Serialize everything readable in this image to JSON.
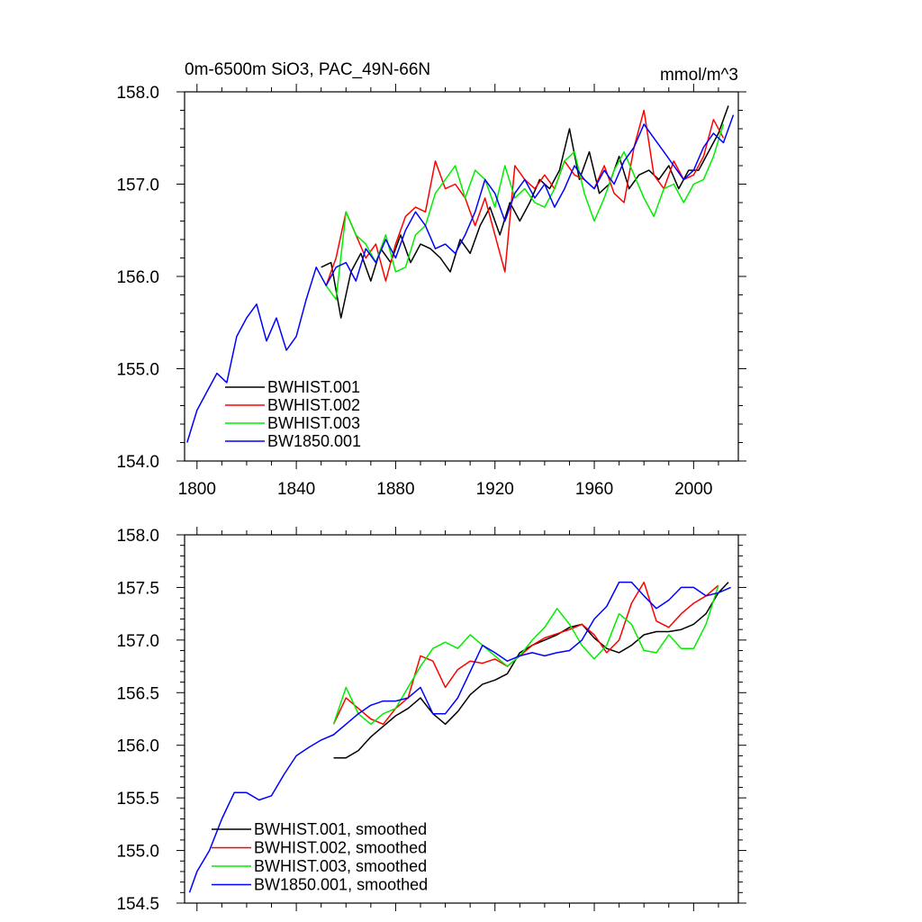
{
  "chart_data": [
    {
      "type": "line",
      "title_left": "0m-6500m SiO3, PAC_49N-66N",
      "title_right": "mmol/m^3",
      "xlim": [
        1795,
        2018
      ],
      "ylim": [
        154.0,
        158.0
      ],
      "xticks": [
        1800,
        1840,
        1880,
        1920,
        1960,
        2000
      ],
      "yticks": [
        154.0,
        155.0,
        156.0,
        157.0,
        158.0
      ],
      "yticks_format": 1,
      "x_minor_step": 10,
      "y_minor_step": 0.2,
      "show_x_tick_labels": true,
      "legend_position": "bottom-left",
      "series": [
        {
          "name": "BWHIST.001",
          "color": "#000000",
          "x": [
            1850,
            1854,
            1858,
            1862,
            1866,
            1870,
            1874,
            1878,
            1882,
            1886,
            1890,
            1894,
            1898,
            1902,
            1906,
            1910,
            1914,
            1918,
            1922,
            1926,
            1930,
            1934,
            1938,
            1942,
            1946,
            1950,
            1954,
            1958,
            1962,
            1966,
            1970,
            1974,
            1978,
            1982,
            1986,
            1990,
            1994,
            1998,
            2002,
            2006,
            2010,
            2014
          ],
          "y": [
            156.1,
            156.15,
            155.55,
            156.05,
            156.25,
            155.95,
            156.3,
            156.15,
            156.45,
            156.15,
            156.35,
            156.3,
            156.2,
            156.05,
            156.4,
            156.25,
            156.55,
            156.75,
            156.45,
            156.8,
            156.6,
            156.8,
            157.05,
            156.95,
            157.15,
            157.6,
            157.05,
            157.35,
            156.9,
            157.0,
            157.3,
            156.95,
            157.1,
            157.15,
            157.05,
            157.2,
            156.95,
            157.15,
            157.15,
            157.35,
            157.55,
            157.85
          ]
        },
        {
          "name": "BWHIST.002",
          "color": "#ff0000",
          "x": [
            1852,
            1856,
            1860,
            1864,
            1868,
            1872,
            1876,
            1880,
            1884,
            1888,
            1892,
            1896,
            1900,
            1904,
            1908,
            1912,
            1916,
            1920,
            1924,
            1928,
            1932,
            1936,
            1940,
            1944,
            1948,
            1952,
            1956,
            1960,
            1964,
            1968,
            1972,
            1976,
            1980,
            1984,
            1988,
            1992,
            1996,
            2000,
            2004,
            2008,
            2012
          ],
          "y": [
            155.9,
            156.2,
            156.7,
            156.45,
            156.2,
            156.35,
            155.95,
            156.35,
            156.65,
            156.75,
            156.7,
            157.25,
            156.95,
            157.0,
            156.85,
            156.55,
            156.85,
            156.45,
            156.05,
            157.2,
            157.05,
            156.95,
            157.1,
            156.95,
            157.25,
            157.1,
            157.05,
            156.95,
            157.2,
            156.9,
            156.8,
            157.4,
            157.8,
            157.1,
            156.95,
            157.25,
            157.05,
            157.1,
            157.3,
            157.7,
            157.5
          ]
        },
        {
          "name": "BWHIST.003",
          "color": "#00ee00",
          "x": [
            1852,
            1856,
            1860,
            1864,
            1868,
            1872,
            1876,
            1880,
            1884,
            1888,
            1892,
            1896,
            1900,
            1904,
            1908,
            1912,
            1916,
            1920,
            1924,
            1928,
            1932,
            1936,
            1940,
            1944,
            1948,
            1952,
            1956,
            1960,
            1964,
            1968,
            1972,
            1976,
            1980,
            1984,
            1988,
            1992,
            1996,
            2000,
            2004,
            2008,
            2012
          ],
          "y": [
            155.9,
            155.75,
            156.7,
            156.45,
            156.35,
            156.15,
            156.45,
            156.05,
            156.1,
            156.45,
            156.55,
            156.9,
            157.05,
            157.2,
            156.85,
            157.15,
            157.05,
            156.75,
            157.2,
            156.85,
            156.95,
            156.8,
            156.75,
            156.95,
            157.25,
            157.35,
            156.9,
            156.6,
            156.85,
            157.15,
            157.35,
            157.1,
            156.85,
            156.65,
            156.95,
            157.0,
            156.8,
            157.0,
            157.05,
            157.3,
            157.65
          ]
        },
        {
          "name": "BW1850.001",
          "color": "#0000ff",
          "x": [
            1796,
            1800,
            1804,
            1808,
            1812,
            1816,
            1820,
            1824,
            1828,
            1832,
            1836,
            1840,
            1844,
            1848,
            1852,
            1856,
            1860,
            1864,
            1868,
            1872,
            1876,
            1880,
            1884,
            1888,
            1892,
            1896,
            1900,
            1904,
            1908,
            1912,
            1916,
            1920,
            1924,
            1928,
            1932,
            1936,
            1940,
            1944,
            1948,
            1952,
            1956,
            1960,
            1964,
            1968,
            1972,
            1976,
            1980,
            1984,
            1988,
            1992,
            1996,
            2000,
            2004,
            2008,
            2012,
            2016
          ],
          "y": [
            154.2,
            154.55,
            154.75,
            154.95,
            154.85,
            155.35,
            155.55,
            155.7,
            155.3,
            155.55,
            155.2,
            155.35,
            155.75,
            156.1,
            155.9,
            156.1,
            156.15,
            155.95,
            156.3,
            156.15,
            156.4,
            156.2,
            156.5,
            156.7,
            156.55,
            156.3,
            156.35,
            156.25,
            156.45,
            156.7,
            157.05,
            156.9,
            156.6,
            156.9,
            157.05,
            156.85,
            157.0,
            156.75,
            156.95,
            157.2,
            157.05,
            156.95,
            157.15,
            157.0,
            157.25,
            157.4,
            157.65,
            157.5,
            157.35,
            157.2,
            157.05,
            157.15,
            157.4,
            157.55,
            157.45,
            157.75
          ]
        }
      ]
    },
    {
      "type": "line",
      "xlim": [
        1795,
        2018
      ],
      "ylim": [
        154.5,
        158.0
      ],
      "xticks": [
        1800,
        1840,
        1880,
        1920,
        1960,
        2000
      ],
      "yticks": [
        154.5,
        155.0,
        155.5,
        156.0,
        156.5,
        157.0,
        157.5,
        158.0
      ],
      "yticks_format": 1,
      "x_minor_step": 10,
      "y_minor_step": 0.1,
      "show_x_tick_labels": false,
      "legend_position": "bottom-left",
      "series": [
        {
          "name": "BWHIST.001, smoothed",
          "color": "#000000",
          "x": [
            1855,
            1860,
            1865,
            1870,
            1875,
            1880,
            1885,
            1890,
            1895,
            1900,
            1905,
            1910,
            1915,
            1920,
            1925,
            1930,
            1935,
            1940,
            1945,
            1950,
            1955,
            1960,
            1965,
            1970,
            1975,
            1980,
            1985,
            1990,
            1995,
            2000,
            2005,
            2010,
            2014
          ],
          "y": [
            155.88,
            155.88,
            155.95,
            156.08,
            156.18,
            156.28,
            156.35,
            156.45,
            156.3,
            156.2,
            156.32,
            156.48,
            156.58,
            156.62,
            156.68,
            156.88,
            156.95,
            157.0,
            157.05,
            157.12,
            157.15,
            157.02,
            156.92,
            156.88,
            156.95,
            157.05,
            157.08,
            157.08,
            157.1,
            157.15,
            157.25,
            157.45,
            157.55
          ]
        },
        {
          "name": "BWHIST.002, smoothed",
          "color": "#ff0000",
          "x": [
            1855,
            1860,
            1865,
            1870,
            1875,
            1880,
            1885,
            1890,
            1895,
            1900,
            1905,
            1910,
            1915,
            1920,
            1925,
            1930,
            1935,
            1940,
            1945,
            1950,
            1955,
            1960,
            1965,
            1970,
            1975,
            1980,
            1985,
            1990,
            1995,
            2000,
            2005,
            2010
          ],
          "y": [
            156.2,
            156.45,
            156.35,
            156.25,
            156.2,
            156.35,
            156.45,
            156.85,
            156.8,
            156.55,
            156.72,
            156.8,
            156.78,
            156.82,
            156.75,
            156.85,
            156.95,
            157.02,
            157.06,
            157.1,
            157.15,
            157.05,
            156.88,
            157.0,
            157.35,
            157.55,
            157.18,
            157.12,
            157.25,
            157.35,
            157.42,
            157.52
          ]
        },
        {
          "name": "BWHIST.003, smoothed",
          "color": "#00ee00",
          "x": [
            1855,
            1860,
            1865,
            1870,
            1875,
            1880,
            1885,
            1890,
            1895,
            1900,
            1905,
            1910,
            1915,
            1920,
            1925,
            1930,
            1935,
            1940,
            1945,
            1950,
            1955,
            1960,
            1965,
            1970,
            1975,
            1980,
            1985,
            1990,
            1995,
            2000,
            2005,
            2010
          ],
          "y": [
            156.2,
            156.55,
            156.3,
            156.2,
            156.3,
            156.35,
            156.55,
            156.75,
            156.92,
            156.98,
            156.92,
            157.05,
            156.95,
            156.85,
            156.75,
            156.85,
            157.0,
            157.12,
            157.3,
            157.15,
            156.95,
            156.82,
            156.95,
            157.25,
            157.15,
            156.9,
            156.88,
            157.05,
            156.92,
            156.92,
            157.15,
            157.52
          ]
        },
        {
          "name": "BW1850.001, smoothed",
          "color": "#0000ff",
          "x": [
            1797,
            1800,
            1805,
            1810,
            1815,
            1820,
            1825,
            1830,
            1835,
            1840,
            1845,
            1850,
            1855,
            1860,
            1865,
            1870,
            1875,
            1880,
            1885,
            1890,
            1895,
            1900,
            1905,
            1910,
            1915,
            1920,
            1925,
            1930,
            1935,
            1940,
            1945,
            1950,
            1955,
            1960,
            1965,
            1970,
            1975,
            1980,
            1985,
            1990,
            1995,
            2000,
            2005,
            2010,
            2015
          ],
          "y": [
            154.6,
            154.8,
            155.0,
            155.3,
            155.55,
            155.55,
            155.48,
            155.52,
            155.72,
            155.9,
            155.98,
            156.05,
            156.1,
            156.2,
            156.3,
            156.38,
            156.42,
            156.42,
            156.45,
            156.55,
            156.3,
            156.3,
            156.45,
            156.7,
            156.95,
            156.88,
            156.8,
            156.85,
            156.88,
            156.85,
            156.88,
            156.9,
            157.0,
            157.2,
            157.32,
            157.55,
            157.55,
            157.42,
            157.3,
            157.38,
            157.5,
            157.5,
            157.42,
            157.45,
            157.5
          ]
        }
      ]
    }
  ]
}
